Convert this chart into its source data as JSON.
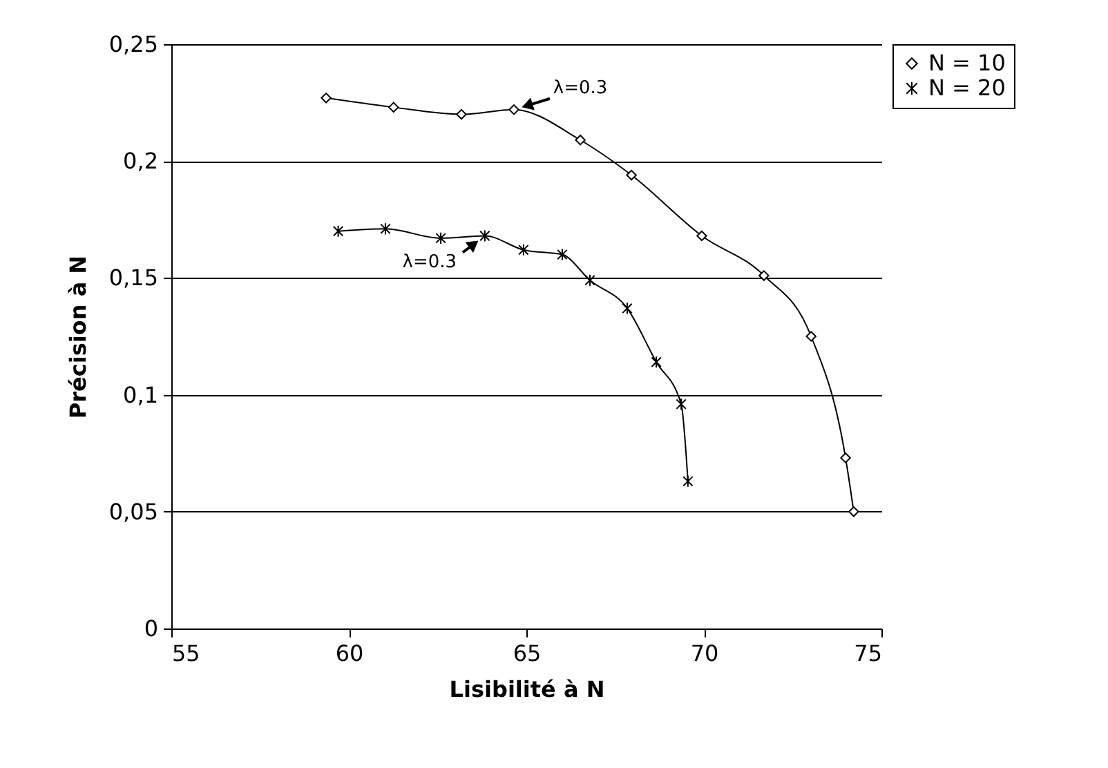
{
  "chart_data": {
    "type": "line",
    "xlabel": "Lisibilité à N",
    "ylabel": "Précision à N",
    "xlim": [
      55,
      75
    ],
    "xticks": [
      55,
      60,
      65,
      70,
      75
    ],
    "ylim": [
      0,
      0.25
    ],
    "yticks": [
      {
        "value": 0,
        "label": "0"
      },
      {
        "value": 0.05,
        "label": "0,05"
      },
      {
        "value": 0.1,
        "label": "0,1"
      },
      {
        "value": 0.15,
        "label": "0,15"
      },
      {
        "value": 0.2,
        "label": "0,2"
      },
      {
        "value": 0.25,
        "label": "0,25"
      }
    ],
    "grid": "y",
    "legend": "right",
    "line_style": "solid",
    "series": [
      {
        "name": "N = 10",
        "color": "#000000",
        "marker": "diamond",
        "x": [
          59.36,
          61.26,
          63.17,
          64.65,
          66.52,
          67.96,
          69.94,
          71.69,
          73.02,
          73.99,
          74.22
        ],
        "values": [
          0.227,
          0.223,
          0.22,
          0.222,
          0.209,
          0.194,
          0.168,
          0.151,
          0.125,
          0.073,
          0.05
        ]
      },
      {
        "name": "N = 20",
        "color": "#000000",
        "marker": "cross",
        "x": [
          59.7,
          61.03,
          62.59,
          63.83,
          64.92,
          66.01,
          66.79,
          67.84,
          68.66,
          69.36,
          69.55
        ],
        "values": [
          0.17,
          0.171,
          0.167,
          0.168,
          0.162,
          0.16,
          0.149,
          0.137,
          0.114,
          0.096,
          0.063
        ]
      }
    ],
    "annotations": [
      {
        "text": "λ=0.3",
        "x": 64.65,
        "y": 0.222
      },
      {
        "text": "λ=0.3",
        "x": 63.83,
        "y": 0.168
      }
    ]
  }
}
